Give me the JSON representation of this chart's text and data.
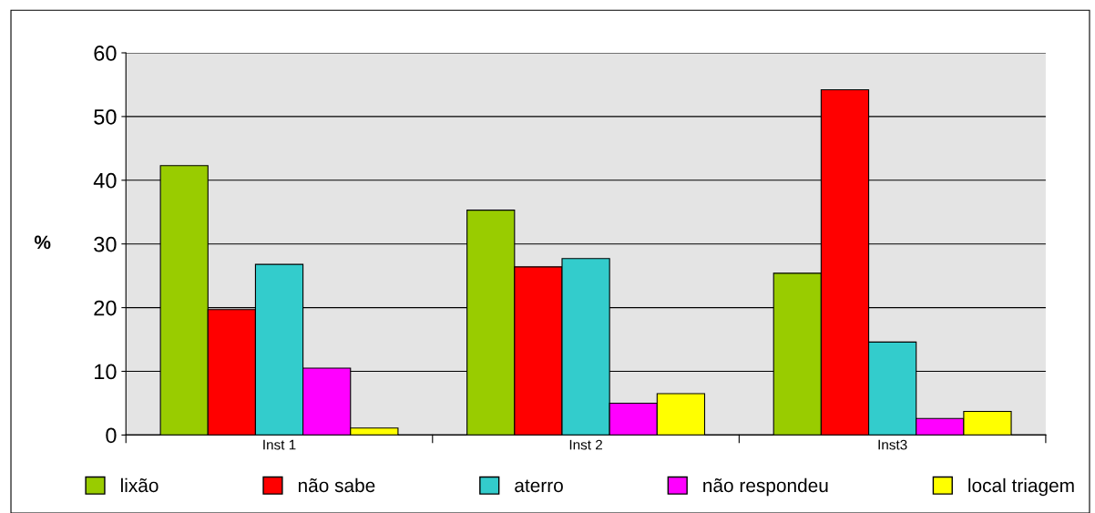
{
  "chart_data": {
    "type": "bar",
    "ylabel": "%",
    "categories": [
      "Inst 1",
      "Inst 2",
      "Inst3"
    ],
    "series": [
      {
        "name": "lixão",
        "color": "#99cc00",
        "values": [
          42.3,
          35.3,
          25.4
        ]
      },
      {
        "name": "não sabe",
        "color": "#ff0000",
        "values": [
          19.7,
          26.4,
          54.2
        ]
      },
      {
        "name": "aterro",
        "color": "#33cccc",
        "values": [
          26.8,
          27.7,
          14.6
        ]
      },
      {
        "name": "não respondeu",
        "color": "#ff00ff",
        "values": [
          10.5,
          5.0,
          2.6
        ]
      },
      {
        "name": "local triagem",
        "color": "#ffff00",
        "values": [
          1.1,
          6.5,
          3.7
        ]
      }
    ],
    "ylim": [
      0,
      60
    ],
    "yticks": [
      0,
      10,
      20,
      30,
      40,
      50,
      60
    ],
    "grid": "y",
    "legend": "bottom"
  }
}
